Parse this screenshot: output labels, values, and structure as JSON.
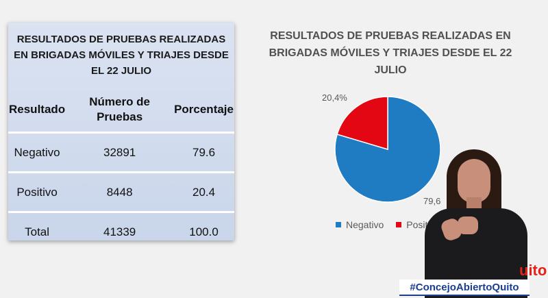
{
  "table": {
    "title": "RESULTADOS DE PRUEBAS REALIZADAS EN BRIGADAS MÓVILES Y TRIAJES DESDE EL 22 JULIO",
    "headers": [
      "Resultado",
      "Número de Pruebas",
      "Porcentaje"
    ],
    "rows": [
      [
        "Negativo",
        "32891",
        "79.6"
      ],
      [
        "Positivo",
        "8448",
        "20.4"
      ],
      [
        "Total",
        "41339",
        "100.0"
      ]
    ]
  },
  "chart_data": {
    "type": "pie",
    "title": "RESULTADOS DE PRUEBAS REALIZADAS EN BRIGADAS MÓVILES Y TRIAJES DESDE EL 22 JULIO",
    "categories": [
      "Negativo",
      "Positivo"
    ],
    "values": [
      79.6,
      20.4
    ],
    "data_labels": [
      "79,6",
      "20,4%"
    ],
    "colors": [
      "#1f7bc2",
      "#e30613"
    ],
    "legend_position": "bottom"
  },
  "overlay": {
    "hashtag": "#ConcejoAbiertoQuito",
    "logo_fragment": "uito"
  }
}
